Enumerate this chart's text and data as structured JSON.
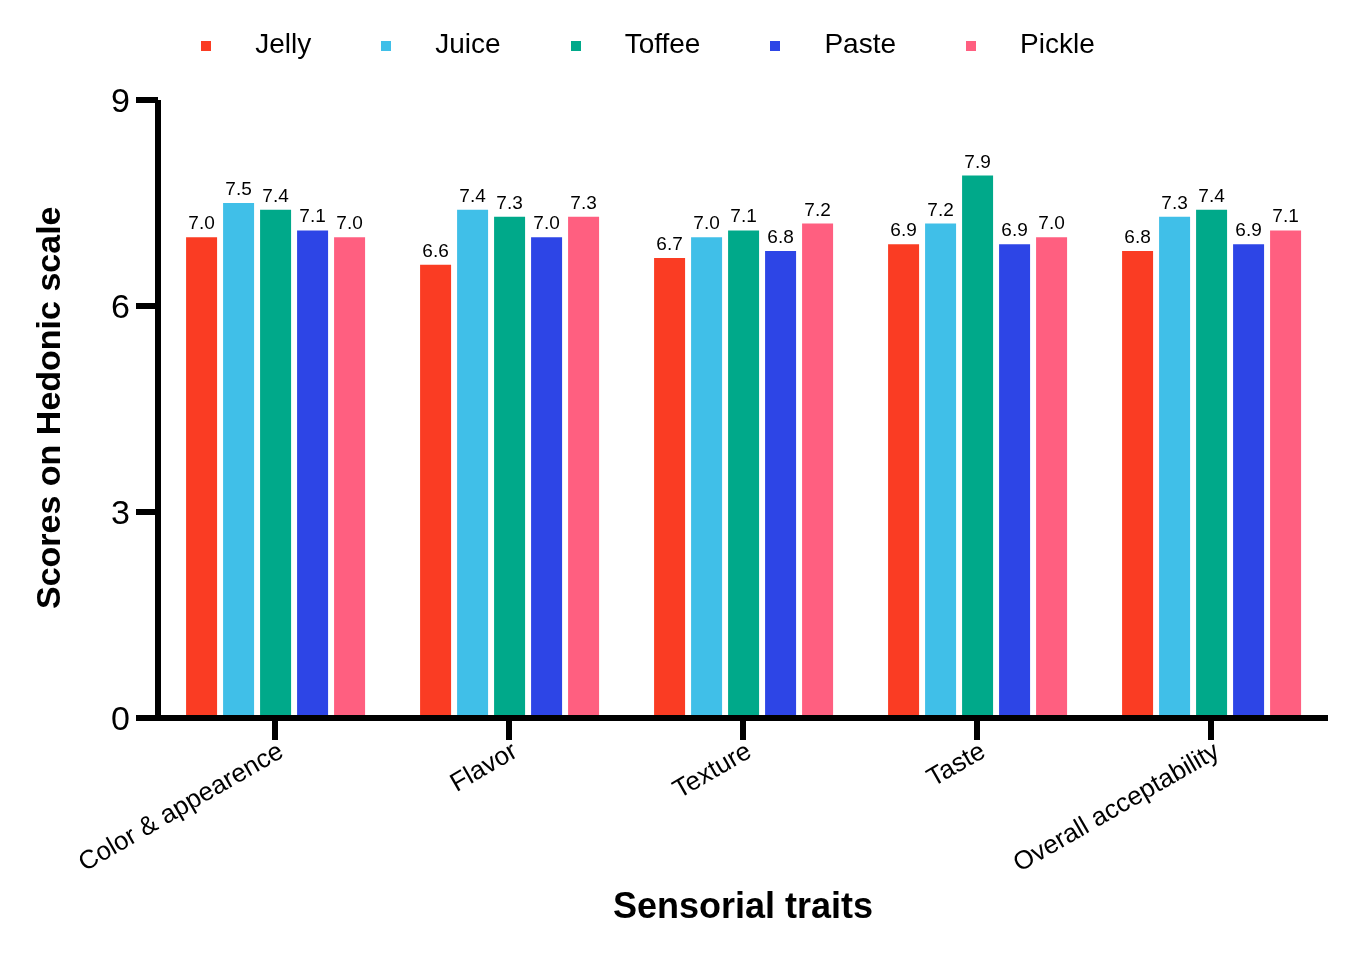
{
  "chart_data": {
    "type": "bar",
    "xlabel": "Sensorial traits",
    "ylabel": "Scores on Hedonic scale",
    "categories": [
      "Color & appearence",
      "Flavor",
      "Texture",
      "Taste",
      "Overall acceptability"
    ],
    "series": [
      {
        "name": "Jelly",
        "color": "#fa3c23",
        "values": [
          7.0,
          6.6,
          6.7,
          6.9,
          6.8
        ],
        "value_labels": [
          "7.0",
          "6.6",
          "6.7",
          "6.9",
          "6.8"
        ]
      },
      {
        "name": "Juice",
        "color": "#40bfe8",
        "values": [
          7.5,
          7.4,
          7.0,
          7.2,
          7.3
        ],
        "value_labels": [
          "7.5",
          "7.4",
          "7.0",
          "7.2",
          "7.3"
        ]
      },
      {
        "name": "Toffee",
        "color": "#00a98a",
        "values": [
          7.4,
          7.3,
          7.1,
          7.9,
          7.4
        ],
        "value_labels": [
          "7.4",
          "7.3",
          "7.1",
          "7.9",
          "7.4"
        ]
      },
      {
        "name": "Paste",
        "color": "#2d45e6",
        "values": [
          7.1,
          7.0,
          6.8,
          6.9,
          6.9
        ],
        "value_labels": [
          "7.1",
          "7.0",
          "6.8",
          "6.9",
          "6.9"
        ]
      },
      {
        "name": "Pickle",
        "color": "#ff5f80",
        "values": [
          7.0,
          7.3,
          7.2,
          7.0,
          7.1
        ],
        "value_labels": [
          "7.0",
          "7.3",
          "7.2",
          "7.0",
          "7.1"
        ]
      }
    ],
    "ylim": [
      0,
      9
    ],
    "yticks": [
      0,
      3,
      6,
      9
    ],
    "grid": false,
    "legend": "top"
  }
}
